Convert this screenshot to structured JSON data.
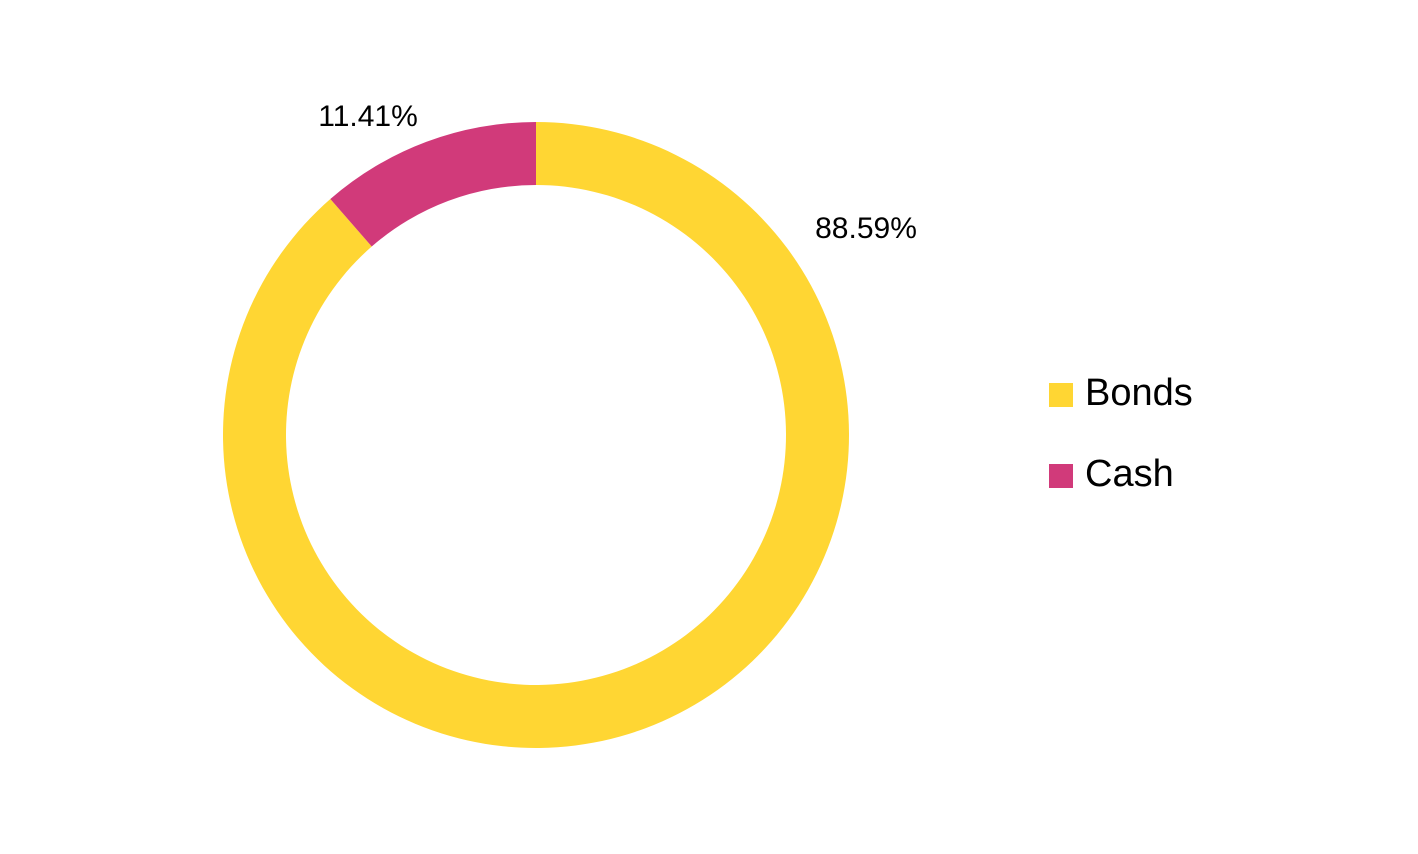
{
  "chart_data": {
    "type": "donut",
    "categories": [
      "Bonds",
      "Cash"
    ],
    "values": [
      88.59,
      11.41
    ],
    "value_labels": [
      "88.59%",
      "11.41%"
    ],
    "colors": [
      "#FFD633",
      "#D13A7A"
    ],
    "legend": "right"
  }
}
